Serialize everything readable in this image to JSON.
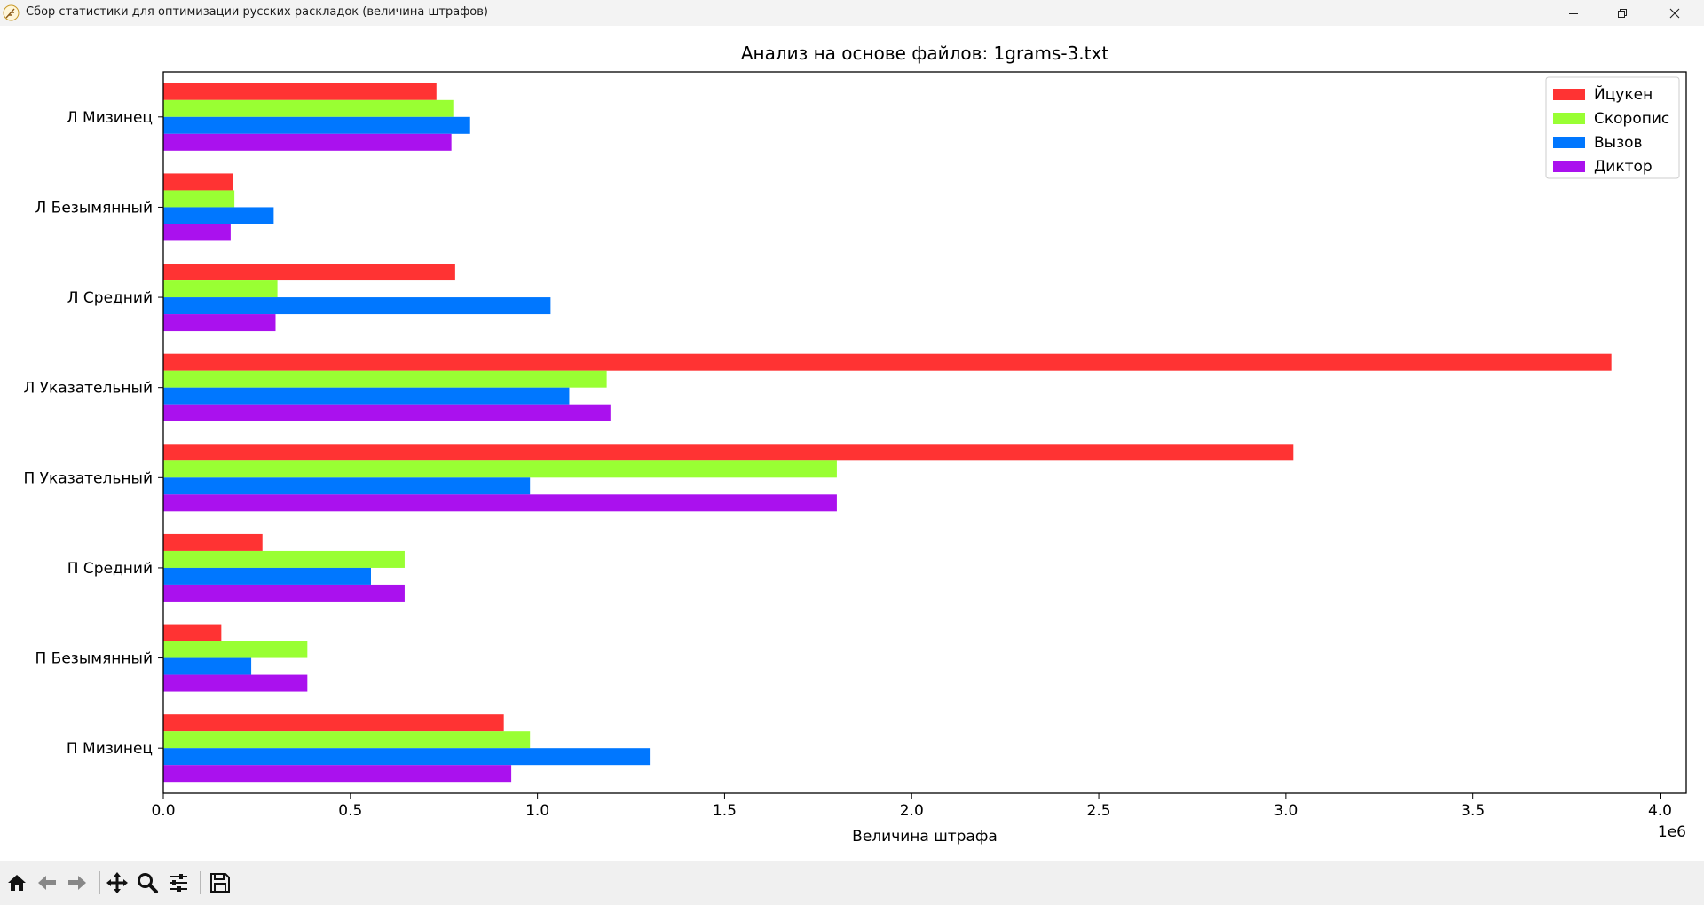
{
  "window": {
    "title": "Сбор статистики для оптимизации русских раскладок (величина штрафов)",
    "icon": "feather-app-icon",
    "controls": [
      "minimize-icon",
      "restore-icon",
      "close-icon"
    ]
  },
  "toolbar": {
    "buttons": [
      "home-icon",
      "back-arrow-icon",
      "forward-arrow-icon",
      "pan-icon",
      "zoom-icon",
      "configure-subplots-icon",
      "save-icon"
    ]
  },
  "chart_data": {
    "type": "bar",
    "orientation": "horizontal",
    "title": "Анализ на основе файлов: 1grams-3.txt",
    "xlabel": "Величина штрафа",
    "ylabel": "",
    "x_offset_label": "1e6",
    "xlim": [
      0,
      4.07
    ],
    "xticks": [
      "0.0",
      "0.5",
      "1.0",
      "1.5",
      "2.0",
      "2.5",
      "3.0",
      "3.5",
      "4.0"
    ],
    "categories": [
      "Л Мизинец",
      "Л Безымянный",
      "Л Средний",
      "Л Указательный",
      "П Указательный",
      "П Средний",
      "П Безымянный",
      "П Мизинец"
    ],
    "series": [
      {
        "name": "Йцукен",
        "color": "#ff3333",
        "values": [
          0.73,
          0.185,
          0.78,
          3.87,
          3.02,
          0.265,
          0.155,
          0.91
        ]
      },
      {
        "name": "Скоропис",
        "color": "#99ff33",
        "values": [
          0.775,
          0.19,
          0.305,
          1.185,
          1.8,
          0.645,
          0.385,
          0.98
        ]
      },
      {
        "name": "Вызов",
        "color": "#0077ff",
        "values": [
          0.82,
          0.295,
          1.035,
          1.085,
          0.98,
          0.555,
          0.235,
          1.3
        ]
      },
      {
        "name": "Диктор",
        "color": "#aa11ee",
        "values": [
          0.77,
          0.18,
          0.3,
          1.195,
          1.8,
          0.645,
          0.385,
          0.93
        ]
      }
    ],
    "legend_position": "top-right",
    "grid": false
  }
}
